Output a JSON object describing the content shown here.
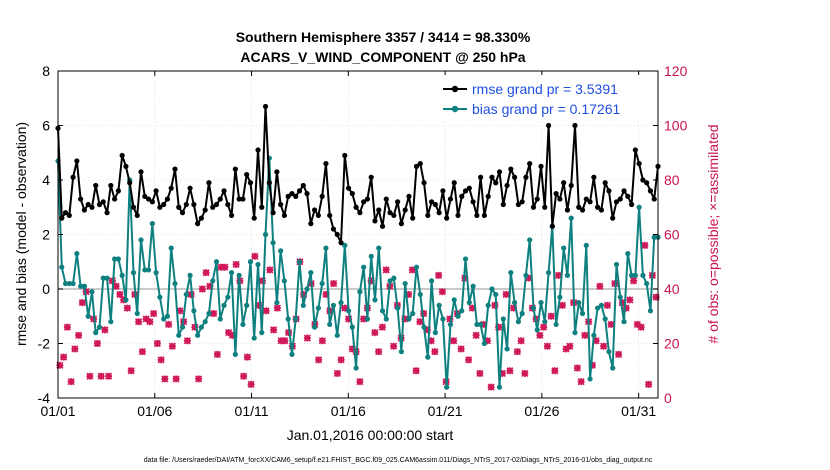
{
  "chart_data": {
    "type": "line",
    "title": "Southern Hemisphere 3357 / 3414 = 98.330%",
    "subtitle": "ACARS_V_WIND_COMPONENT @ 250 hPa",
    "xlabel": "Jan.01,2016 00:00:00 start",
    "ylabel": "rmse and bias (model - observation)",
    "ylabel_right": "# of obs: o=possible; ×=assimilated",
    "footnote": "data file: /Users/raeder/DAI/ATM_forcXX/CAM6_setup/f.e21.FHIST_BGC.f09_025.CAM6assim.011/Diags_NTrS_2017-02/Diags_NTrS_2016-01/obs_diag_output.nc",
    "xlim": [
      1,
      32
    ],
    "ylim": [
      -4,
      8
    ],
    "ylim_right": [
      0,
      120
    ],
    "x_ticks": [
      1,
      6,
      11,
      16,
      21,
      26,
      31
    ],
    "x_tick_labels": [
      "01/01",
      "01/06",
      "01/11",
      "01/16",
      "01/21",
      "01/26",
      "01/31"
    ],
    "y_ticks": [
      -4,
      -2,
      0,
      2,
      4,
      6,
      8
    ],
    "y_tick_labels": [
      "-4",
      "-2",
      "0",
      "2",
      "4",
      "6",
      "8"
    ],
    "y_right_ticks": [
      0,
      20,
      40,
      60,
      80,
      100,
      120
    ],
    "y_right_tick_labels": [
      "0",
      "20",
      "40",
      "60",
      "80",
      "100",
      "120"
    ],
    "legend_position": "top-right",
    "colors": {
      "rmse": "#000000",
      "bias": "#0e8080",
      "obs": "#d0195a",
      "zero_line": "#b8b8b8"
    },
    "series": [
      {
        "name": "rmse grand pr = 3.5391",
        "color": "#000000",
        "values": [
          5.9,
          2.6,
          2.8,
          2.7,
          4.1,
          4.7,
          3.3,
          2.9,
          3.1,
          3.0,
          3.8,
          3.1,
          3.2,
          2.8,
          3.8,
          3.3,
          3.6,
          4.9,
          4.5,
          3.9,
          3.0,
          2.7,
          4.3,
          3.4,
          3.3,
          3.2,
          3.6,
          3.0,
          3.1,
          3.3,
          3.7,
          4.4,
          3.0,
          2.8,
          3.1,
          3.7,
          3.1,
          2.4,
          2.6,
          2.9,
          3.9,
          3.0,
          3.1,
          3.3,
          3.6,
          3.1,
          2.7,
          4.4,
          3.3,
          3.3,
          4.2,
          3.9,
          2.6,
          5.1,
          3.0,
          6.7,
          3.9,
          2.8,
          4.3,
          3.1,
          2.7,
          3.4,
          3.5,
          3.4,
          3.6,
          3.8,
          3.5,
          2.4,
          2.9,
          2.7,
          3.4,
          4.6,
          2.7,
          2.2,
          2.0,
          1.7,
          4.9,
          3.7,
          3.5,
          3.0,
          2.8,
          3.2,
          3.3,
          4.1,
          2.5,
          2.9,
          2.3,
          3.3,
          2.8,
          2.7,
          3.2,
          2.4,
          2.9,
          3.4,
          2.6,
          4.5,
          4.6,
          3.9,
          2.7,
          3.2,
          3.1,
          2.8,
          3.6,
          2.6,
          3.3,
          3.9,
          2.7,
          3.4,
          3.6,
          3.7,
          3.2,
          2.7,
          4.1,
          2.7,
          3.4,
          4.1,
          3.9,
          4.3,
          3.1,
          3.8,
          4.4,
          4.1,
          3.1,
          3.2,
          4.1,
          4.6,
          3.0,
          3.3,
          4.5,
          3.0,
          6.0,
          2.3,
          3.5,
          3.3,
          3.9,
          2.9,
          3.8,
          6.0,
          3.0,
          2.9,
          3.3,
          3.2,
          4.1,
          3.0,
          2.9,
          3.9,
          3.6,
          2.6,
          3.2,
          3.3,
          3.6,
          3.4,
          3.1,
          5.1,
          4.6,
          4.0,
          3.9,
          3.6,
          3.3,
          4.5
        ],
        "marker": "o"
      },
      {
        "name": "bias grand pr = 0.17261",
        "color": "#0e8080",
        "values": [
          4.7,
          0.8,
          0.2,
          0.2,
          0.2,
          1.3,
          0.1,
          0.1,
          -1.0,
          -0.1,
          -1.6,
          -1.4,
          0.4,
          0.4,
          -1.2,
          1.1,
          1.1,
          0.5,
          -0.4,
          4.0,
          0.6,
          -0.9,
          1.8,
          0.7,
          0.7,
          2.4,
          0.6,
          -0.3,
          -1.1,
          -1.0,
          1.5,
          0.2,
          -1.7,
          -1.4,
          -0.2,
          0.5,
          -0.8,
          -1.7,
          -1.4,
          -1.2,
          -0.9,
          0.3,
          1.0,
          -1.1,
          -0.6,
          -0.3,
          0.6,
          -2.4,
          0.5,
          -1.3,
          -0.6,
          1.0,
          -1.8,
          0.9,
          -1.6,
          2.0,
          4.8,
          1.7,
          -0.5,
          1.4,
          0.3,
          -1.1,
          -2.4,
          -1.1,
          1.0,
          -0.6,
          0.0,
          0.6,
          -1.4,
          -0.7,
          0.2,
          1.5,
          -1.3,
          -0.6,
          -1.7,
          -0.5,
          1.6,
          -0.8,
          -1.4,
          -2.9,
          -0.1,
          0.8,
          -1.1,
          1.2,
          -0.4,
          1.5,
          -0.8,
          -1.1,
          0.3,
          0.4,
          -0.7,
          -2.3,
          0.2,
          -1.1,
          -0.9,
          0.8,
          -0.2,
          -1.4,
          -2.5,
          0.3,
          -1.6,
          -0.6,
          -1.1,
          -3.6,
          -1.3,
          -0.4,
          -1.0,
          -0.8,
          1.1,
          -0.5,
          0.1,
          -1.3,
          -1.3,
          -2.0,
          -0.6,
          0.0,
          -0.2,
          -3.6,
          -1.1,
          -2.2,
          0.6,
          -0.5,
          -1.2,
          -0.9,
          0.5,
          1.8,
          -0.7,
          -1.5,
          -0.5,
          -1.2,
          0.6,
          2.3,
          -1.3,
          -0.3,
          1.5,
          0.5,
          2.6,
          -1.6,
          -0.5,
          -0.9,
          1.6,
          -3.3,
          -1.7,
          -0.7,
          -0.6,
          -1.1,
          -2.3,
          -2.9,
          0.9,
          -0.3,
          -1.2,
          1.3,
          0.5,
          0.5,
          3.0,
          0.5,
          0.2,
          -0.8,
          1.9,
          1.9
        ],
        "marker": "o"
      },
      {
        "name": "obs possible (o)",
        "axis": "right",
        "color": "#d0195a",
        "values": [
          12,
          15,
          26,
          6,
          18,
          23,
          35,
          39,
          8,
          29,
          20,
          8,
          25,
          8,
          43,
          41,
          38,
          36,
          33,
          10,
          38,
          28,
          17,
          29,
          28,
          31,
          20,
          14,
          7,
          27,
          19,
          7,
          32,
          28,
          21,
          38,
          26,
          7,
          40,
          46,
          41,
          31,
          16,
          48,
          48,
          24,
          23,
          49,
          43,
          8,
          15,
          5,
          52,
          34,
          43,
          32,
          47,
          25,
          33,
          21,
          21,
          24,
          19,
          29,
          50,
          38,
          22,
          42,
          27,
          14,
          21,
          38,
          32,
          42,
          9,
          14,
          33,
          29,
          18,
          17,
          6,
          29,
          33,
          43,
          24,
          17,
          26,
          47,
          41,
          19,
          34,
          22,
          29,
          38,
          47,
          10,
          28,
          31,
          25,
          21,
          17,
          45,
          39,
          6,
          29,
          21,
          31,
          18,
          44,
          14,
          33,
          23,
          9,
          27,
          21,
          4,
          34,
          26,
          9,
          38,
          10,
          33,
          17,
          21,
          9,
          44,
          33,
          29,
          23,
          26,
          19,
          30,
          10,
          45,
          34,
          18,
          19,
          35,
          11,
          6,
          23,
          28,
          12,
          21,
          41,
          19,
          34,
          27,
          42,
          16,
          35,
          33,
          36,
          43,
          27,
          26,
          56,
          5,
          45,
          37
        ],
        "marker": "o"
      },
      {
        "name": "obs assimilated (×)",
        "axis": "right",
        "color": "#d0195a",
        "values": [
          12,
          15,
          26,
          6,
          18,
          23,
          35,
          39,
          8,
          29,
          20,
          8,
          25,
          8,
          43,
          41,
          38,
          36,
          33,
          10,
          38,
          28,
          17,
          29,
          28,
          31,
          20,
          14,
          7,
          27,
          19,
          7,
          32,
          28,
          21,
          38,
          26,
          7,
          40,
          46,
          41,
          31,
          16,
          48,
          48,
          24,
          23,
          49,
          43,
          8,
          15,
          5,
          52,
          34,
          43,
          32,
          47,
          25,
          33,
          21,
          21,
          24,
          19,
          29,
          50,
          38,
          22,
          42,
          27,
          14,
          21,
          38,
          32,
          42,
          9,
          14,
          33,
          29,
          18,
          17,
          6,
          29,
          33,
          43,
          24,
          17,
          26,
          47,
          41,
          19,
          34,
          22,
          29,
          38,
          47,
          10,
          28,
          31,
          25,
          21,
          17,
          45,
          39,
          6,
          29,
          21,
          31,
          18,
          44,
          14,
          33,
          23,
          9,
          27,
          21,
          4,
          34,
          26,
          9,
          38,
          10,
          33,
          17,
          21,
          9,
          44,
          33,
          29,
          23,
          26,
          19,
          30,
          10,
          45,
          34,
          18,
          19,
          35,
          11,
          6,
          23,
          28,
          12,
          21,
          41,
          19,
          34,
          27,
          42,
          16,
          35,
          33,
          36,
          43,
          27,
          26,
          56,
          5,
          45,
          37
        ],
        "marker": "x"
      }
    ]
  }
}
